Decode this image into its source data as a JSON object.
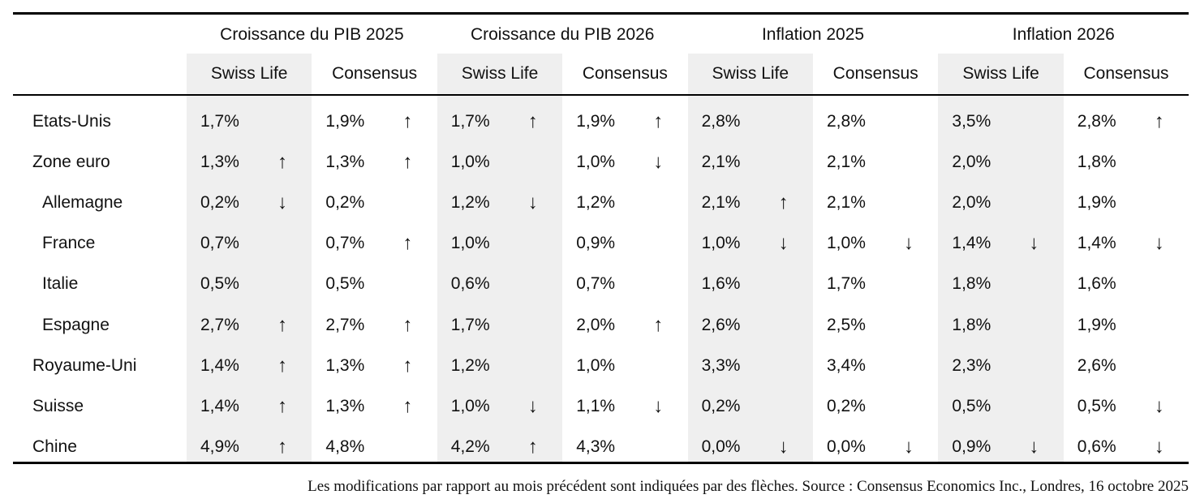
{
  "table": {
    "groups": [
      {
        "title": "Croissance du PIB 2025",
        "columns": [
          "Swiss Life",
          "Consensus"
        ]
      },
      {
        "title": "Croissance du PIB 2026",
        "columns": [
          "Swiss Life",
          "Consensus"
        ]
      },
      {
        "title": "Inflation 2025",
        "columns": [
          "Swiss Life",
          "Consensus"
        ]
      },
      {
        "title": "Inflation 2026",
        "columns": [
          "Swiss Life",
          "Consensus"
        ]
      }
    ],
    "rows": [
      {
        "label": "Etats-Unis",
        "cells": [
          {
            "value": "1,7%"
          },
          {
            "value": "1,9%",
            "arrow": "↑"
          },
          {
            "value": "1,7%",
            "arrow": "↑"
          },
          {
            "value": "1,9%",
            "arrow": "↑"
          },
          {
            "value": "2,8%"
          },
          {
            "value": "2,8%"
          },
          {
            "value": "3,5%"
          },
          {
            "value": "2,8%",
            "arrow": "↑"
          }
        ]
      },
      {
        "label": "Zone euro",
        "cells": [
          {
            "value": "1,3%",
            "arrow": "↑"
          },
          {
            "value": "1,3%",
            "arrow": "↑"
          },
          {
            "value": "1,0%"
          },
          {
            "value": "1,0%",
            "arrow": "↓"
          },
          {
            "value": "2,1%"
          },
          {
            "value": "2,1%"
          },
          {
            "value": "2,0%"
          },
          {
            "value": "1,8%"
          }
        ]
      },
      {
        "label": "Allemagne",
        "cells": [
          {
            "value": "0,2%",
            "arrow": "↓"
          },
          {
            "value": "0,2%"
          },
          {
            "value": "1,2%",
            "arrow": "↓"
          },
          {
            "value": "1,2%"
          },
          {
            "value": "2,1%",
            "arrow": "↑"
          },
          {
            "value": "2,1%"
          },
          {
            "value": "2,0%"
          },
          {
            "value": "1,9%"
          }
        ]
      },
      {
        "label": "France",
        "cells": [
          {
            "value": "0,7%"
          },
          {
            "value": "0,7%",
            "arrow": "↑"
          },
          {
            "value": "1,0%"
          },
          {
            "value": "0,9%"
          },
          {
            "value": "1,0%",
            "arrow": "↓"
          },
          {
            "value": "1,0%",
            "arrow": "↓"
          },
          {
            "value": "1,4%",
            "arrow": "↓"
          },
          {
            "value": "1,4%",
            "arrow": "↓"
          }
        ]
      },
      {
        "label": "Italie",
        "cells": [
          {
            "value": "0,5%"
          },
          {
            "value": "0,5%"
          },
          {
            "value": "0,6%"
          },
          {
            "value": "0,7%"
          },
          {
            "value": "1,6%"
          },
          {
            "value": "1,7%"
          },
          {
            "value": "1,8%"
          },
          {
            "value": "1,6%"
          }
        ]
      },
      {
        "label": "Espagne",
        "cells": [
          {
            "value": "2,7%",
            "arrow": "↑"
          },
          {
            "value": "2,7%",
            "arrow": "↑"
          },
          {
            "value": "1,7%"
          },
          {
            "value": "2,0%",
            "arrow": "↑"
          },
          {
            "value": "2,6%"
          },
          {
            "value": "2,5%"
          },
          {
            "value": "1,8%"
          },
          {
            "value": "1,9%"
          }
        ]
      },
      {
        "label": "Royaume-Uni",
        "cells": [
          {
            "value": "1,4%",
            "arrow": "↑"
          },
          {
            "value": "1,3%",
            "arrow": "↑"
          },
          {
            "value": "1,2%"
          },
          {
            "value": "1,0%"
          },
          {
            "value": "3,3%"
          },
          {
            "value": "3,4%"
          },
          {
            "value": "2,3%"
          },
          {
            "value": "2,6%"
          }
        ]
      },
      {
        "label": "Suisse",
        "cells": [
          {
            "value": "1,4%",
            "arrow": "↑"
          },
          {
            "value": "1,3%",
            "arrow": "↑"
          },
          {
            "value": "1,0%",
            "arrow": "↓"
          },
          {
            "value": "1,1%",
            "arrow": "↓"
          },
          {
            "value": "0,2%"
          },
          {
            "value": "0,2%"
          },
          {
            "value": "0,5%"
          },
          {
            "value": "0,5%",
            "arrow": "↓"
          }
        ]
      },
      {
        "label": "Chine",
        "cells": [
          {
            "value": "4,9%",
            "arrow": "↑"
          },
          {
            "value": "4,8%"
          },
          {
            "value": "4,2%",
            "arrow": "↑"
          },
          {
            "value": "4,3%"
          },
          {
            "value": "0,0%",
            "arrow": "↓"
          },
          {
            "value": "0,0%",
            "arrow": "↓"
          },
          {
            "value": "0,9%",
            "arrow": "↓"
          },
          {
            "value": "0,6%",
            "arrow": "↓"
          }
        ]
      }
    ]
  },
  "footer": {
    "note": "Les modifications par rapport au mois précédent sont indiquées par des flèches. Source : Consensus Economics Inc., Londres, 16 octobre 2025"
  }
}
